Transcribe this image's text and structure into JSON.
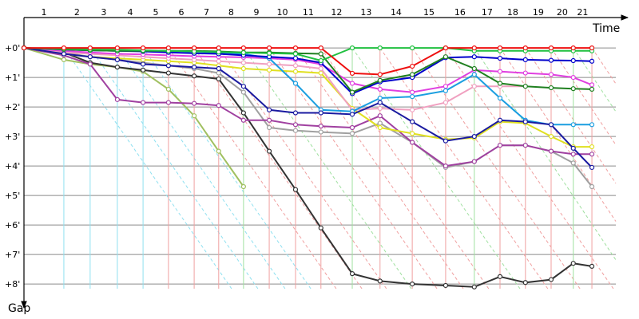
{
  "chart_data": {
    "type": "line",
    "x_label": "Time",
    "y_label": "Gap",
    "xlim": [
      0,
      20.3
    ],
    "xticks": [
      {
        "value": 1.35,
        "label": "1"
      },
      {
        "value": 2.24,
        "label": "2"
      },
      {
        "value": 3.16,
        "label": "3"
      },
      {
        "value": 4.03,
        "label": "4"
      },
      {
        "value": 4.89,
        "label": "5"
      },
      {
        "value": 5.76,
        "label": "6"
      },
      {
        "value": 6.59,
        "label": "7"
      },
      {
        "value": 7.43,
        "label": "8"
      },
      {
        "value": 8.3,
        "label": "9"
      },
      {
        "value": 9.19,
        "label": "10"
      },
      {
        "value": 10.05,
        "label": "11"
      },
      {
        "value": 11.11,
        "label": "12"
      },
      {
        "value": 12.05,
        "label": "13"
      },
      {
        "value": 13.14,
        "label": "14"
      },
      {
        "value": 14.27,
        "label": "15"
      },
      {
        "value": 15.24,
        "label": "16"
      },
      {
        "value": 16.11,
        "label": "17"
      },
      {
        "value": 16.97,
        "label": "18"
      },
      {
        "value": 17.84,
        "label": "19"
      },
      {
        "value": 18.59,
        "label": "20"
      },
      {
        "value": 19.22,
        "label": "21"
      }
    ],
    "ylim": [
      -1.03,
      8.7
    ],
    "yticks": [
      {
        "value": 0,
        "label": "+0'"
      },
      {
        "value": 1,
        "label": "+1'"
      },
      {
        "value": 2,
        "label": "+2'"
      },
      {
        "value": 3,
        "label": "+3'"
      },
      {
        "value": 4,
        "label": "+4'"
      },
      {
        "value": 5,
        "label": "+5'"
      },
      {
        "value": 6,
        "label": "+6'"
      },
      {
        "value": 7,
        "label": "+7'"
      },
      {
        "value": 8,
        "label": "+8'"
      }
    ],
    "grid": true,
    "y_inverted": true,
    "x": [
      0,
      1.35,
      2.24,
      3.16,
      4.03,
      4.89,
      5.76,
      6.59,
      7.43,
      8.3,
      9.19,
      10.05,
      11.11,
      12.05,
      13.14,
      14.27,
      15.24,
      16.11,
      16.97,
      17.84,
      18.59,
      19.22
    ],
    "series": [
      {
        "color": "#a0c060",
        "values": [
          0,
          0.4,
          0.55,
          0.65,
          0.8,
          1.4,
          2.3,
          3.5,
          4.7,
          null,
          null,
          null,
          null,
          null,
          null,
          null,
          null,
          null,
          null,
          null,
          null,
          null
        ]
      },
      {
        "color": "#333333",
        "values": [
          0,
          0.15,
          0.5,
          0.65,
          0.75,
          0.85,
          0.95,
          1.05,
          2.2,
          3.5,
          4.8,
          6.1,
          7.65,
          7.9,
          8.0,
          8.05,
          8.1,
          7.75,
          7.95,
          7.85,
          7.3,
          7.4
        ]
      },
      {
        "color": "#a0a0a0",
        "values": [
          0,
          0.15,
          0.3,
          0.4,
          0.5,
          0.6,
          0.7,
          0.85,
          1.5,
          2.7,
          2.8,
          2.85,
          2.9,
          2.55,
          3.2,
          4.05,
          3.85,
          3.3,
          3.3,
          3.5,
          3.9,
          4.7
        ]
      },
      {
        "color": "#a040a0",
        "values": [
          0,
          0.25,
          0.55,
          1.75,
          1.85,
          1.85,
          1.88,
          1.95,
          2.45,
          2.45,
          2.6,
          2.65,
          2.7,
          2.3,
          3.2,
          4.0,
          3.85,
          3.3,
          3.3,
          3.5,
          3.6,
          3.6
        ]
      },
      {
        "color": "#e0e020",
        "values": [
          0,
          0.2,
          0.3,
          0.35,
          0.4,
          0.45,
          0.5,
          0.6,
          0.7,
          0.75,
          0.8,
          0.85,
          2.05,
          2.7,
          2.9,
          3.1,
          3.05,
          2.5,
          2.55,
          3.0,
          3.35,
          3.35
        ]
      },
      {
        "color": "#f0a0c0",
        "values": [
          0,
          0.15,
          0.2,
          0.25,
          0.3,
          0.35,
          0.4,
          0.45,
          0.5,
          0.55,
          0.6,
          0.7,
          2.1,
          2.05,
          2.1,
          1.85,
          1.3,
          1.3,
          1.3,
          null,
          null,
          null
        ]
      },
      {
        "color": "#e040e0",
        "values": [
          0,
          0.1,
          0.15,
          0.2,
          0.22,
          0.25,
          0.28,
          0.3,
          0.32,
          0.35,
          0.4,
          0.55,
          1.2,
          1.4,
          1.5,
          1.3,
          0.75,
          0.8,
          0.85,
          0.9,
          1.0,
          1.25
        ]
      },
      {
        "color": "#1a9ee0",
        "values": [
          0,
          0.05,
          0.08,
          0.1,
          0.1,
          0.1,
          0.12,
          0.15,
          0.2,
          0.35,
          1.2,
          2.1,
          2.15,
          1.7,
          1.65,
          1.45,
          0.9,
          1.7,
          2.45,
          2.6,
          2.6,
          2.6
        ]
      },
      {
        "color": "#1a1aa0",
        "values": [
          0,
          0.2,
          0.3,
          0.4,
          0.55,
          0.6,
          0.65,
          0.7,
          1.3,
          2.1,
          2.2,
          2.2,
          2.25,
          1.85,
          2.5,
          3.15,
          3.0,
          2.45,
          2.5,
          2.6,
          3.4,
          4.05
        ]
      },
      {
        "color": "#0000cc",
        "values": [
          0,
          0.05,
          0.08,
          0.1,
          0.12,
          0.15,
          0.18,
          0.2,
          0.25,
          0.3,
          0.35,
          0.5,
          1.55,
          1.15,
          1.0,
          0.33,
          0.3,
          0.35,
          0.4,
          0.42,
          0.43,
          0.45
        ]
      },
      {
        "color": "#208020",
        "values": [
          0,
          0.05,
          0.08,
          0.1,
          0.1,
          0.1,
          0.1,
          0.12,
          0.15,
          0.15,
          0.18,
          0.2,
          1.5,
          1.1,
          0.9,
          0.3,
          0.7,
          1.2,
          1.3,
          1.35,
          1.38,
          1.4
        ]
      },
      {
        "color": "#20c040",
        "values": [
          0,
          0.03,
          0.05,
          0.06,
          0.08,
          0.1,
          0.12,
          0.14,
          0.16,
          0.18,
          0.2,
          0.43,
          0,
          0,
          0,
          0,
          0.1,
          0.1,
          0.1,
          0.1,
          0.1,
          0.1
        ]
      },
      {
        "color": "#ee1010",
        "values": [
          0,
          0,
          0,
          0,
          0,
          0,
          0,
          0,
          0,
          0,
          0,
          0,
          0.86,
          0.9,
          0.62,
          0,
          0,
          0,
          0,
          0,
          0,
          0
        ]
      }
    ]
  }
}
